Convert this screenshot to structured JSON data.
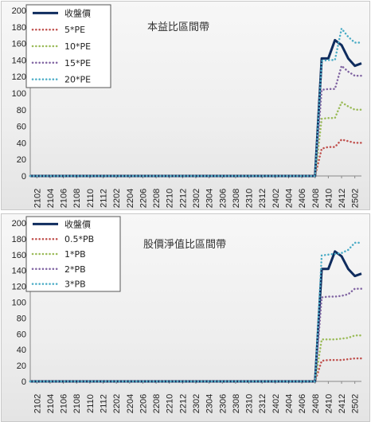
{
  "chart_data": [
    {
      "type": "line",
      "title": "本益比區間帶",
      "ylim": [
        0,
        200
      ],
      "yticks": [
        "0",
        "20",
        "40",
        "60",
        "80",
        "100",
        "120",
        "140",
        "160",
        "180",
        "200"
      ],
      "x": [
        "2101",
        "2102",
        "2103",
        "2104",
        "2105",
        "2106",
        "2107",
        "2108",
        "2109",
        "2110",
        "2111",
        "2112",
        "2201",
        "2202",
        "2203",
        "2204",
        "2205",
        "2206",
        "2207",
        "2208",
        "2209",
        "2210",
        "2211",
        "2212",
        "2301",
        "2302",
        "2303",
        "2304",
        "2305",
        "2306",
        "2307",
        "2308",
        "2309",
        "2310",
        "2311",
        "2312",
        "2401",
        "2402",
        "2403",
        "2404",
        "2405",
        "2406",
        "2407",
        "2408",
        "2409",
        "2410",
        "2411",
        "2412",
        "2501",
        "2502",
        "2503"
      ],
      "xtick_labels": [
        "2102",
        "2104",
        "2106",
        "2108",
        "2110",
        "2112",
        "2202",
        "2204",
        "2206",
        "2208",
        "2210",
        "2212",
        "2302",
        "2304",
        "2306",
        "2308",
        "2310",
        "2312",
        "2402",
        "2404",
        "2406",
        "2408",
        "2410",
        "2412",
        "2502"
      ],
      "legend_position": "top-left",
      "grid": false,
      "series": [
        {
          "name": "收盤價",
          "color": "#0f2c5e",
          "style": "solid",
          "values": [
            0,
            0,
            0,
            0,
            0,
            0,
            0,
            0,
            0,
            0,
            0,
            0,
            0,
            0,
            0,
            0,
            0,
            0,
            0,
            0,
            0,
            0,
            0,
            0,
            0,
            0,
            0,
            0,
            0,
            0,
            0,
            0,
            0,
            0,
            0,
            0,
            0,
            0,
            0,
            0,
            0,
            0,
            0,
            0,
            142,
            142,
            164,
            158,
            142,
            133,
            136
          ]
        },
        {
          "name": "5*PE",
          "color": "#c0504d",
          "style": "dotted",
          "values": [
            0,
            0,
            0,
            0,
            0,
            0,
            0,
            0,
            0,
            0,
            0,
            0,
            0,
            0,
            0,
            0,
            0,
            0,
            0,
            0,
            0,
            0,
            0,
            0,
            0,
            0,
            0,
            0,
            0,
            0,
            0,
            0,
            0,
            0,
            0,
            0,
            0,
            0,
            0,
            0,
            0,
            0,
            0,
            0,
            33,
            35,
            35,
            44,
            42,
            40,
            40
          ]
        },
        {
          "name": "10*PE",
          "color": "#9bbb59",
          "style": "dotted",
          "values": [
            0,
            0,
            0,
            0,
            0,
            0,
            0,
            0,
            0,
            0,
            0,
            0,
            0,
            0,
            0,
            0,
            0,
            0,
            0,
            0,
            0,
            0,
            0,
            0,
            0,
            0,
            0,
            0,
            0,
            0,
            0,
            0,
            0,
            0,
            0,
            0,
            0,
            0,
            0,
            0,
            0,
            0,
            0,
            0,
            69,
            70,
            70,
            89,
            84,
            80,
            80
          ]
        },
        {
          "name": "15*PE",
          "color": "#8064a2",
          "style": "dotted",
          "values": [
            0,
            0,
            0,
            0,
            0,
            0,
            0,
            0,
            0,
            0,
            0,
            0,
            0,
            0,
            0,
            0,
            0,
            0,
            0,
            0,
            0,
            0,
            0,
            0,
            0,
            0,
            0,
            0,
            0,
            0,
            0,
            0,
            0,
            0,
            0,
            0,
            0,
            0,
            0,
            0,
            0,
            0,
            0,
            0,
            104,
            105,
            105,
            133,
            126,
            121,
            121
          ]
        },
        {
          "name": "20*PE",
          "color": "#4bacc6",
          "style": "dotted",
          "values": [
            0,
            0,
            0,
            0,
            0,
            0,
            0,
            0,
            0,
            0,
            0,
            0,
            0,
            0,
            0,
            0,
            0,
            0,
            0,
            0,
            0,
            0,
            0,
            0,
            0,
            0,
            0,
            0,
            0,
            0,
            0,
            0,
            0,
            0,
            0,
            0,
            0,
            0,
            0,
            0,
            0,
            0,
            0,
            0,
            139,
            140,
            140,
            178,
            168,
            161,
            161
          ]
        }
      ]
    },
    {
      "type": "line",
      "title": "股價淨值比區間帶",
      "ylim": [
        0,
        200
      ],
      "yticks": [
        "0",
        "20",
        "40",
        "60",
        "80",
        "100",
        "120",
        "140",
        "160",
        "180",
        "200"
      ],
      "x": [
        "2101",
        "2102",
        "2103",
        "2104",
        "2105",
        "2106",
        "2107",
        "2108",
        "2109",
        "2110",
        "2111",
        "2112",
        "2201",
        "2202",
        "2203",
        "2204",
        "2205",
        "2206",
        "2207",
        "2208",
        "2209",
        "2210",
        "2211",
        "2212",
        "2301",
        "2302",
        "2303",
        "2304",
        "2305",
        "2306",
        "2307",
        "2308",
        "2309",
        "2310",
        "2311",
        "2312",
        "2401",
        "2402",
        "2403",
        "2404",
        "2405",
        "2406",
        "2407",
        "2408",
        "2409",
        "2410",
        "2411",
        "2412",
        "2501",
        "2502",
        "2503"
      ],
      "xtick_labels": [
        "2102",
        "2104",
        "2106",
        "2108",
        "2110",
        "2112",
        "2202",
        "2204",
        "2206",
        "2208",
        "2210",
        "2212",
        "2302",
        "2304",
        "2306",
        "2308",
        "2310",
        "2312",
        "2402",
        "2404",
        "2406",
        "2408",
        "2410",
        "2412",
        "2502"
      ],
      "legend_position": "top-left",
      "grid": false,
      "series": [
        {
          "name": "收盤價",
          "color": "#0f2c5e",
          "style": "solid",
          "values": [
            0,
            0,
            0,
            0,
            0,
            0,
            0,
            0,
            0,
            0,
            0,
            0,
            0,
            0,
            0,
            0,
            0,
            0,
            0,
            0,
            0,
            0,
            0,
            0,
            0,
            0,
            0,
            0,
            0,
            0,
            0,
            0,
            0,
            0,
            0,
            0,
            0,
            0,
            0,
            0,
            0,
            0,
            0,
            0,
            142,
            142,
            164,
            158,
            142,
            133,
            136
          ]
        },
        {
          "name": "0.5*PB",
          "color": "#c0504d",
          "style": "dotted",
          "values": [
            0,
            0,
            0,
            0,
            0,
            0,
            0,
            0,
            0,
            0,
            0,
            0,
            0,
            0,
            0,
            0,
            0,
            0,
            0,
            0,
            0,
            0,
            0,
            0,
            0,
            0,
            0,
            0,
            0,
            0,
            0,
            0,
            0,
            0,
            0,
            0,
            0,
            0,
            0,
            0,
            0,
            0,
            0,
            0,
            26,
            27,
            27,
            27,
            28,
            29,
            29
          ]
        },
        {
          "name": "1*PB",
          "color": "#9bbb59",
          "style": "dotted",
          "values": [
            0,
            0,
            0,
            0,
            0,
            0,
            0,
            0,
            0,
            0,
            0,
            0,
            0,
            0,
            0,
            0,
            0,
            0,
            0,
            0,
            0,
            0,
            0,
            0,
            0,
            0,
            0,
            0,
            0,
            0,
            0,
            0,
            0,
            0,
            0,
            0,
            0,
            0,
            0,
            0,
            0,
            0,
            0,
            0,
            53,
            53,
            53,
            54,
            55,
            58,
            58
          ]
        },
        {
          "name": "2*PB",
          "color": "#8064a2",
          "style": "dotted",
          "values": [
            0,
            0,
            0,
            0,
            0,
            0,
            0,
            0,
            0,
            0,
            0,
            0,
            0,
            0,
            0,
            0,
            0,
            0,
            0,
            0,
            0,
            0,
            0,
            0,
            0,
            0,
            0,
            0,
            0,
            0,
            0,
            0,
            0,
            0,
            0,
            0,
            0,
            0,
            0,
            0,
            0,
            0,
            0,
            0,
            106,
            107,
            107,
            108,
            110,
            117,
            117
          ]
        },
        {
          "name": "3*PB",
          "color": "#4bacc6",
          "style": "dotted",
          "values": [
            0,
            0,
            0,
            0,
            0,
            0,
            0,
            0,
            0,
            0,
            0,
            0,
            0,
            0,
            0,
            0,
            0,
            0,
            0,
            0,
            0,
            0,
            0,
            0,
            0,
            0,
            0,
            0,
            0,
            0,
            0,
            0,
            0,
            0,
            0,
            0,
            0,
            0,
            0,
            0,
            0,
            0,
            0,
            0,
            159,
            160,
            161,
            162,
            166,
            175,
            175
          ]
        }
      ]
    }
  ]
}
